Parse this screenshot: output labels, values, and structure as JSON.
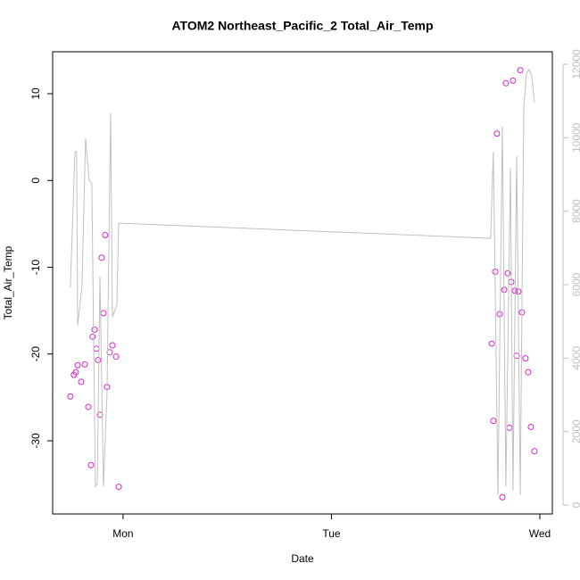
{
  "chart_data": {
    "type": "scatter",
    "title": "ATOM2 Northeast_Pacific_2 Total_Air_Temp",
    "xlabel": "Date",
    "ylabel": "Total_Air_Temp",
    "xlim": [
      -0.338,
      2.06
    ],
    "xticks": [
      {
        "value": 0,
        "label": "Mon"
      },
      {
        "value": 1,
        "label": "Tue"
      },
      {
        "value": 2,
        "label": "Wed"
      }
    ],
    "ylim": [
      -38.43,
      14.83
    ],
    "yticks": [
      -30,
      -20,
      -10,
      0,
      10
    ],
    "y2lim": [
      -243,
      12340
    ],
    "y2ticks": [
      0,
      2000,
      4000,
      6000,
      8000,
      10000,
      12000
    ],
    "series": [
      {
        "name": "Total_Air_Temp",
        "color": "#e020d0",
        "marker": "circle",
        "x": [
          -0.253,
          -0.236,
          -0.227,
          -0.218,
          -0.201,
          -0.184,
          -0.167,
          -0.154,
          -0.146,
          -0.137,
          -0.128,
          -0.12,
          -0.111,
          -0.103,
          -0.094,
          -0.086,
          -0.077,
          -0.064,
          -0.051,
          -0.034,
          -0.021,
          1.769,
          1.777,
          1.786,
          1.794,
          1.807,
          1.82,
          1.829,
          1.837,
          1.846,
          1.854,
          1.863,
          1.871,
          1.88,
          1.889,
          1.897,
          1.906,
          1.914,
          1.931,
          1.944,
          1.957,
          1.974
        ],
        "values": [
          -24.9,
          -22.4,
          -22.1,
          -21.3,
          -23.2,
          -21.2,
          -26.1,
          -32.8,
          -18.0,
          -17.2,
          -19.4,
          -20.7,
          -27.0,
          -8.9,
          -15.3,
          -6.3,
          -23.8,
          -19.8,
          -19.0,
          -20.3,
          -35.3,
          -18.8,
          -27.7,
          -10.5,
          5.4,
          -15.4,
          -36.5,
          -12.6,
          11.2,
          -10.7,
          -28.5,
          -11.7,
          11.5,
          -12.7,
          -20.2,
          -12.8,
          12.7,
          -15.2,
          -20.5,
          -22.1,
          -28.4,
          -31.2
        ]
      },
      {
        "type": "line",
        "axis": "y2",
        "color": "#c0c0c0",
        "x": [
          -0.253,
          -0.231,
          -0.223,
          -0.218,
          -0.197,
          -0.18,
          -0.163,
          -0.15,
          -0.133,
          -0.124,
          -0.111,
          -0.094,
          -0.077,
          -0.06,
          -0.051,
          -0.03,
          -0.021,
          1.764,
          1.777,
          1.799,
          1.82,
          1.837,
          1.859,
          1.871,
          1.889,
          1.906,
          1.923,
          1.936,
          1.949,
          1.961,
          1.974
        ],
        "values": [
          5927,
          9619,
          9619,
          4882,
          5975,
          9983,
          8841,
          8768,
          510,
          559,
          6218,
          510,
          3060,
          10663,
          5125,
          5441,
          7675,
          7262,
          9619,
          267,
          10299,
          510,
          9181,
          389,
          9497,
          267,
          10833,
          11756,
          11853,
          11683,
          10954
        ]
      }
    ]
  }
}
